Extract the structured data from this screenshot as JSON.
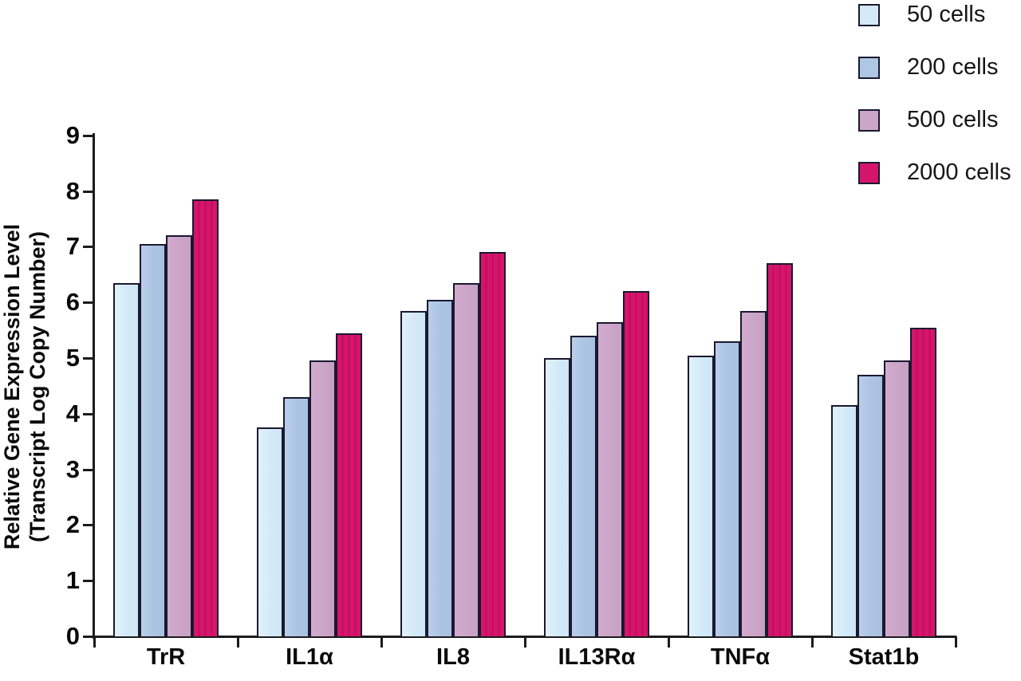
{
  "chart_data": {
    "type": "bar",
    "title": "",
    "ylabel_line1": "Relative Gene Expression Level",
    "ylabel_line2": "(Transcript Log Copy Number)",
    "xlabel": "",
    "categories": [
      "TrR",
      "IL1α",
      "IL8",
      "IL13Rα",
      "TNFα",
      "Stat1b"
    ],
    "series": [
      {
        "name": "50 cells",
        "color": "#d4eaf7",
        "values": [
          6.35,
          3.75,
          5.85,
          5.0,
          5.05,
          4.15
        ]
      },
      {
        "name": "200 cells",
        "color": "#aec7e4",
        "values": [
          7.05,
          4.3,
          6.05,
          5.4,
          5.3,
          4.7
        ]
      },
      {
        "name": "500 cells",
        "color": "#cca5c8",
        "values": [
          7.2,
          4.95,
          6.35,
          5.65,
          5.85,
          4.95
        ]
      },
      {
        "name": "2000 cells",
        "color": "#d5156c",
        "values": [
          7.85,
          5.45,
          6.9,
          6.2,
          6.7,
          5.55
        ]
      }
    ],
    "ylim": [
      0,
      9
    ],
    "yticks": [
      0,
      1,
      2,
      3,
      4,
      5,
      6,
      7,
      8,
      9
    ],
    "grid": false,
    "legend_position": "top-right",
    "bar_outline_color": "#191930",
    "axis_color": "#1b1b1b"
  }
}
